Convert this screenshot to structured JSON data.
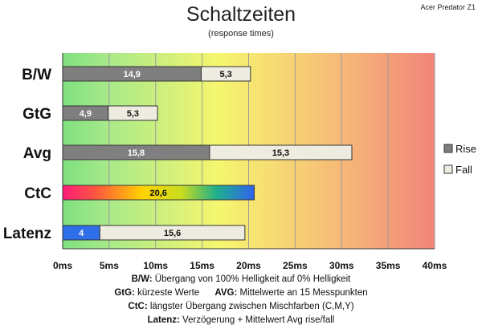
{
  "header": {
    "title": "Schaltzeiten",
    "subtitle": "(response times)",
    "corner_label": "Acer Predator Z1"
  },
  "chart_data": {
    "type": "bar",
    "orientation": "horizontal",
    "stacked": true,
    "categories": [
      "B/W",
      "GtG",
      "Avg",
      "CtC",
      "Latenz"
    ],
    "series": [
      {
        "name": "Rise",
        "values": [
          14.9,
          4.9,
          15.8,
          null,
          4
        ],
        "labels": [
          "14,9",
          "4,9",
          "15,8",
          "",
          "4"
        ],
        "color": "#7f7f7f"
      },
      {
        "name": "Fall",
        "values": [
          5.3,
          5.3,
          15.3,
          null,
          15.6
        ],
        "labels": [
          "5,3",
          "5,3",
          "15,3",
          "",
          "15,6"
        ],
        "color": "#eeece1"
      },
      {
        "name": "CtC",
        "values": [
          null,
          null,
          null,
          20.6,
          null
        ],
        "labels": [
          "",
          "",
          "",
          "20,6",
          ""
        ],
        "color": "gradient"
      }
    ],
    "latency_first_segment_color": "#2e6ee8",
    "x_ticks": [
      "0ms",
      "5ms",
      "10ms",
      "15ms",
      "20ms",
      "25ms",
      "30ms",
      "35ms",
      "40ms"
    ],
    "xlim": [
      0,
      40
    ],
    "grid": true,
    "legend_position": "right",
    "legend": [
      {
        "label": "Rise",
        "color": "#7f7f7f"
      },
      {
        "label": "Fall",
        "color": "#eeece1"
      }
    ],
    "background_gradient": [
      "#7fe07f",
      "#f6f66f",
      "#f28b7a"
    ]
  },
  "captions": [
    {
      "bold": "B/W:",
      "text": " Übergang von 100% Helligkeit auf 0% Helligkeit"
    },
    {
      "bold": "GtG:",
      "text": " kürzeste Werte",
      "bold2": "AVG:",
      "text2": " Mittelwerte an 15 Messpunkten"
    },
    {
      "bold": "CtC:",
      "text": " längster Übergang zwischen Mischfarben (C,M,Y)"
    },
    {
      "bold": "Latenz:",
      "text": " Verzögerung + Mittelwert Avg rise/fall"
    }
  ]
}
